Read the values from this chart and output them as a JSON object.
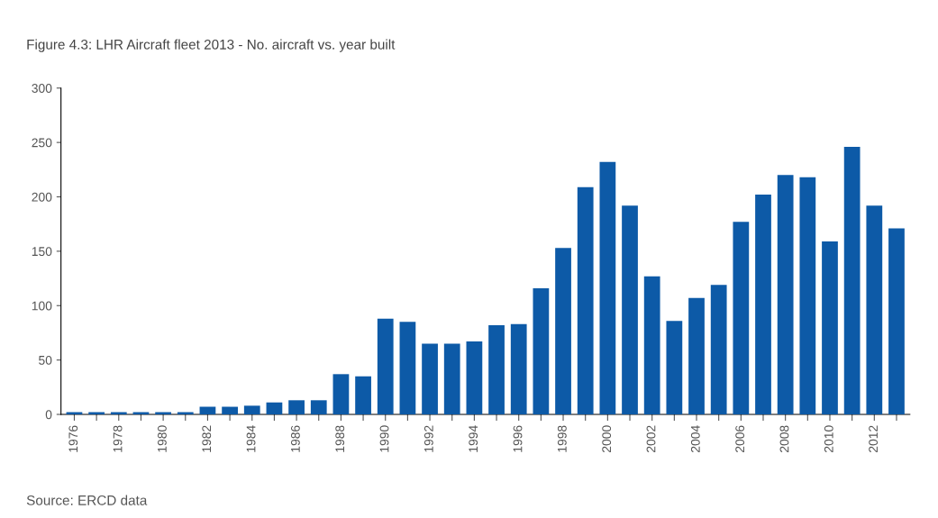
{
  "chart_data": {
    "type": "bar",
    "title": "Figure 4.3: LHR Aircraft fleet 2013 - No. aircraft vs. year built",
    "categories": [
      "1976",
      null,
      "1978",
      null,
      "1980",
      null,
      "1982",
      null,
      "1984",
      null,
      "1986",
      null,
      "1988",
      null,
      "1990",
      null,
      "1992",
      null,
      "1994",
      null,
      "1996",
      null,
      "1998",
      null,
      "2000",
      null,
      "2002",
      null,
      "2004",
      null,
      "2006",
      null,
      "2008",
      null,
      "2010",
      null,
      "2012",
      null
    ],
    "values": [
      2,
      2,
      2,
      2,
      2,
      2,
      7,
      7,
      8,
      11,
      13,
      13,
      37,
      35,
      88,
      85,
      65,
      65,
      67,
      82,
      83,
      116,
      153,
      209,
      232,
      192,
      127,
      86,
      107,
      119,
      177,
      202,
      220,
      218,
      159,
      246,
      192,
      171
    ],
    "color": "#0d5aa7",
    "ylim": [
      0,
      300
    ],
    "yticks": [
      0,
      50,
      100,
      150,
      200,
      250,
      300
    ],
    "grid": false,
    "annotations": [
      "Source: ERCD data"
    ]
  }
}
